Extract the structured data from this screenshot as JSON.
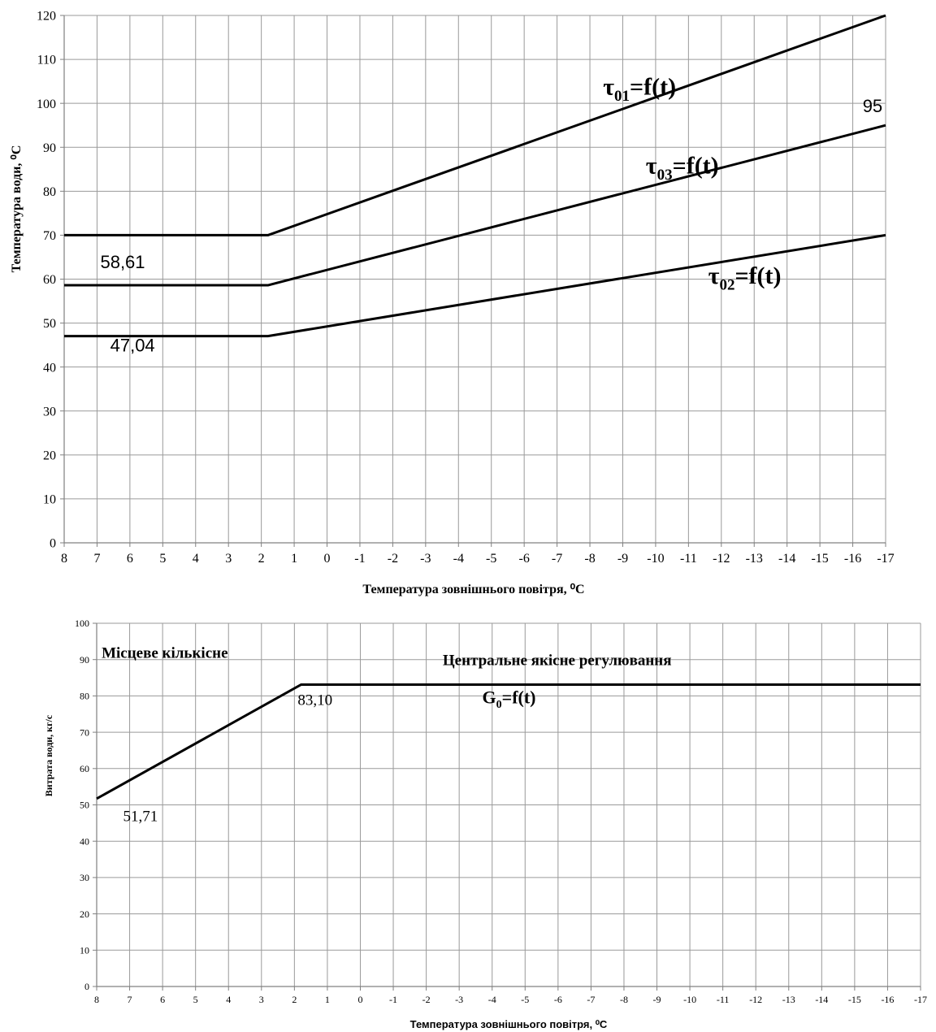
{
  "chart_data": [
    {
      "type": "line",
      "title": "",
      "xlabel": "Температура зовнішнього повітря, ⁰С",
      "ylabel": "Температура води, ⁰С",
      "x_ticks": [
        "8",
        "7",
        "6",
        "5",
        "4",
        "3",
        "2",
        "1",
        "0",
        "-1",
        "-2",
        "-3",
        "-4",
        "-5",
        "-6",
        "-7",
        "-8",
        "-9",
        "-10",
        "-11",
        "-12",
        "-13",
        "-14",
        "-15",
        "-16",
        "-17"
      ],
      "xlim": [
        8,
        -17
      ],
      "ylim": [
        0,
        120
      ],
      "y_ticks": [
        0,
        10,
        20,
        30,
        40,
        50,
        60,
        70,
        80,
        90,
        100,
        110,
        120
      ],
      "grid": true,
      "series": [
        {
          "name": "τ01=f(t)",
          "x": [
            8,
            1.8,
            -17
          ],
          "y": [
            70,
            70,
            120
          ]
        },
        {
          "name": "τ03=f(t)",
          "x": [
            8,
            1.8,
            -17
          ],
          "y": [
            58.61,
            58.61,
            95
          ]
        },
        {
          "name": "τ02=f(t)",
          "x": [
            8,
            1.8,
            -17
          ],
          "y": [
            47.04,
            47.04,
            70
          ]
        }
      ],
      "annotations": [
        {
          "text": "58,61",
          "x": 6.9,
          "y": 62.5
        },
        {
          "text": "47,04",
          "x": 6.6,
          "y": 43.5
        },
        {
          "text": "95",
          "x": -16.3,
          "y": 98
        }
      ],
      "series_labels": [
        {
          "main": "τ",
          "sub": "01",
          "tail": "=f(t)",
          "x": -8.4,
          "y": 102
        },
        {
          "main": "τ",
          "sub": "03",
          "tail": "=f(t)",
          "x": -9.7,
          "y": 84
        },
        {
          "main": "τ",
          "sub": "02",
          "tail": "=f(t)",
          "x": -11.6,
          "y": 59
        }
      ]
    },
    {
      "type": "line",
      "title": "",
      "xlabel": "Температура зовнішнього повітря, ⁰С",
      "ylabel": "Витрата води, кг/с",
      "x_ticks": [
        "8",
        "7",
        "6",
        "5",
        "4",
        "3",
        "2",
        "1",
        "0",
        "-1",
        "-2",
        "-3",
        "-4",
        "-5",
        "-6",
        "-7",
        "-8",
        "-9",
        "-10",
        "-11",
        "-12",
        "-13",
        "-14",
        "-15",
        "-16",
        "-17"
      ],
      "xlim": [
        8,
        -17
      ],
      "ylim": [
        0,
        100
      ],
      "y_ticks": [
        0,
        10,
        20,
        30,
        40,
        50,
        60,
        70,
        80,
        90,
        100
      ],
      "grid": true,
      "series": [
        {
          "name": "G0=f(t)",
          "x": [
            8,
            1.8,
            -17
          ],
          "y": [
            51.71,
            83.1,
            83.1
          ]
        }
      ],
      "annotations": [
        {
          "text": "83,10",
          "x": 1.9,
          "y": 77.5
        },
        {
          "text": "51,71",
          "x": 7.2,
          "y": 45.5
        },
        {
          "text": "Місцеве кількісне",
          "x": 7.85,
          "y": 90.5
        },
        {
          "text": "Центральне  якісне регулювання",
          "x": -2.5,
          "y": 88.5
        }
      ],
      "series_labels": [
        {
          "main": "G",
          "sub": "0",
          "tail": "=f(t)",
          "x": -3.7,
          "y": 78
        }
      ]
    }
  ]
}
